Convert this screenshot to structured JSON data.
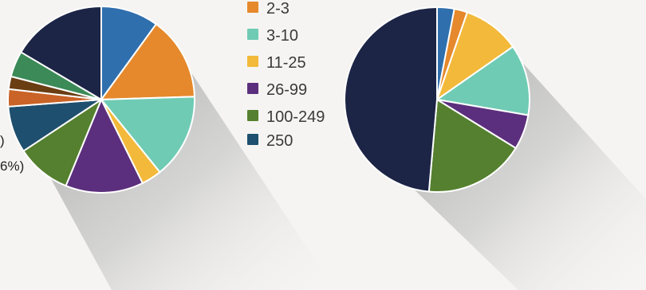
{
  "chart_data": [
    {
      "type": "pie",
      "slices": [
        {
          "color": "#2f6fae",
          "value": 10.0
        },
        {
          "color": "#e5892c",
          "value": 14.5
        },
        {
          "color": "#6fcbb4",
          "value": 14.7
        },
        {
          "color": "#f3b93a",
          "value": 3.5
        },
        {
          "color": "#5b2f7d",
          "value": 13.5
        },
        {
          "color": "#55802f",
          "value": 9.5
        },
        {
          "color": "#1f4f6e",
          "value": 8.1
        },
        {
          "color": "#c96327",
          "value": 3.0
        },
        {
          "color": "#6a3d12",
          "value": 2.2
        },
        {
          "color": "#3b8a58",
          "value": 4.5
        },
        {
          "color": "#1c2546",
          "value": 16.5
        }
      ]
    },
    {
      "type": "pie",
      "slices": [
        {
          "color": "#2f6fae",
          "value": 3.0
        },
        {
          "color": "#e5892c",
          "value": 2.3
        },
        {
          "color": "#f3b93a",
          "value": 10.0
        },
        {
          "color": "#6fcbb4",
          "value": 12.4
        },
        {
          "color": "#5b2f7d",
          "value": 6.1
        },
        {
          "color": "#55802f",
          "value": 17.6
        },
        {
          "color": "#1c2546",
          "value": 48.6
        }
      ]
    }
  ],
  "legend": [
    {
      "label": "2-3",
      "color": "#e5892c"
    },
    {
      "label": "3-10",
      "color": "#6fcbb4"
    },
    {
      "label": "11-25",
      "color": "#f3b93a"
    },
    {
      "label": "26-99",
      "color": "#5b2f7d"
    },
    {
      "label": "100-249",
      "color": "#55802f"
    },
    {
      "label": "250",
      "color": "#1f4f6e"
    }
  ],
  "cut_labels": [
    ")",
    "6%)"
  ]
}
